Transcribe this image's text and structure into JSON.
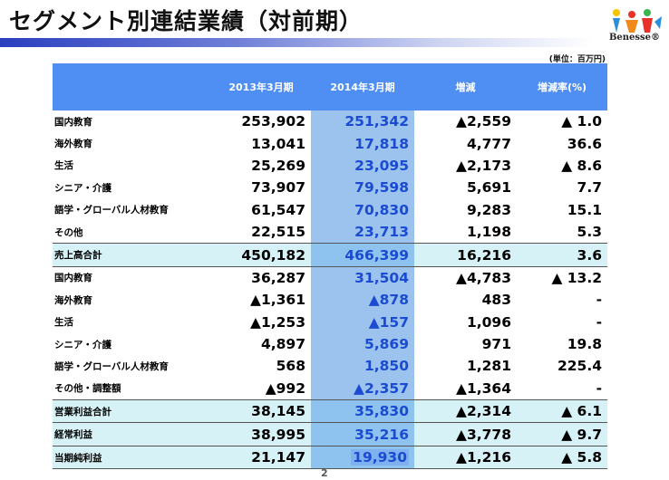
{
  "header": {
    "title": "セグメント別連結業績（対前期）",
    "logo_text": "Benesse®",
    "unit": "(単位：百万円)"
  },
  "table": {
    "columns": [
      "",
      "2013年3月期",
      "2014年3月期",
      "増減",
      "増減率(%)"
    ],
    "rows": [
      {
        "label": "国内教育",
        "v1": "253,902",
        "v2": "251,342",
        "v3": "▲2,559",
        "v4": "▲ 1.0",
        "type": "normal"
      },
      {
        "label": "海外教育",
        "v1": "13,041",
        "v2": "17,818",
        "v3": "4,777",
        "v4": "36.6",
        "type": "normal"
      },
      {
        "label": "生活",
        "v1": "25,269",
        "v2": "23,095",
        "v3": "▲2,173",
        "v4": "▲ 8.6",
        "type": "normal"
      },
      {
        "label": "シニア・介護",
        "v1": "73,907",
        "v2": "79,598",
        "v3": "5,691",
        "v4": "7.7",
        "type": "normal"
      },
      {
        "label": "語学・グローバル人材教育",
        "v1": "61,547",
        "v2": "70,830",
        "v3": "9,283",
        "v4": "15.1",
        "type": "normal"
      },
      {
        "label": "その他",
        "v1": "22,515",
        "v2": "23,713",
        "v3": "1,198",
        "v4": "5.3",
        "type": "normal"
      },
      {
        "label": "売上高合計",
        "v1": "450,182",
        "v2": "466,399",
        "v3": "16,216",
        "v4": "3.6",
        "type": "total"
      },
      {
        "label": "国内教育",
        "v1": "36,287",
        "v2": "31,504",
        "v3": "▲4,783",
        "v4": "▲ 13.2",
        "type": "normal"
      },
      {
        "label": "海外教育",
        "v1": "▲1,361",
        "v2": "▲878",
        "v3": "483",
        "v4": "-",
        "type": "normal"
      },
      {
        "label": "生活",
        "v1": "▲1,253",
        "v2": "▲157",
        "v3": "1,096",
        "v4": "-",
        "type": "normal"
      },
      {
        "label": "シニア・介護",
        "v1": "4,897",
        "v2": "5,869",
        "v3": "971",
        "v4": "19.8",
        "type": "normal"
      },
      {
        "label": "語学・グローバル人材教育",
        "v1": "568",
        "v2": "1,850",
        "v3": "1,281",
        "v4": "225.4",
        "type": "normal"
      },
      {
        "label": "その他・調整額",
        "v1": "▲992",
        "v2": "▲2,357",
        "v3": "▲1,364",
        "v4": "-",
        "type": "normal"
      },
      {
        "label": "営業利益合計",
        "v1": "38,145",
        "v2": "35,830",
        "v3": "▲2,314",
        "v4": "▲ 6.1",
        "type": "total"
      },
      {
        "label": "経常利益",
        "v1": "38,995",
        "v2": "35,216",
        "v3": "▲3,778",
        "v4": "▲ 9.7",
        "type": "total"
      },
      {
        "label": "当期純利益",
        "v1": "21,147",
        "v2": "19,930",
        "v3": "▲1,216",
        "v4": "▲ 5.8",
        "type": "total"
      }
    ]
  },
  "footer": {
    "page_number": "2"
  }
}
